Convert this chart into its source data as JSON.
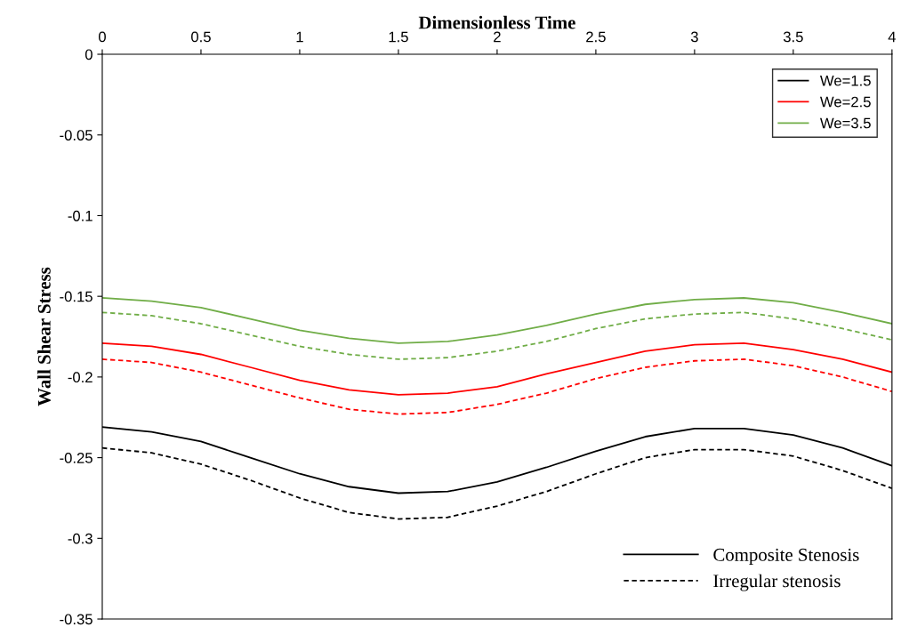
{
  "chart_data": {
    "type": "line",
    "xlabel": "Dimensionless Time",
    "ylabel": "Wall Shear Stress",
    "x": [
      0,
      0.25,
      0.5,
      0.75,
      1,
      1.25,
      1.5,
      1.75,
      2,
      2.25,
      2.5,
      2.75,
      3,
      3.25,
      3.5,
      3.75,
      4
    ],
    "series": [
      {
        "name": "We=1.5",
        "color": "#000000",
        "line_style": "solid",
        "values": [
          -0.231,
          -0.234,
          -0.24,
          -0.25,
          -0.26,
          -0.268,
          -0.272,
          -0.271,
          -0.265,
          -0.256,
          -0.246,
          -0.237,
          -0.232,
          -0.232,
          -0.236,
          -0.244,
          -0.255
        ]
      },
      {
        "name": "We=2.5",
        "color": "#ff0000",
        "line_style": "solid",
        "values": [
          -0.179,
          -0.181,
          -0.186,
          -0.194,
          -0.202,
          -0.208,
          -0.211,
          -0.21,
          -0.206,
          -0.198,
          -0.191,
          -0.184,
          -0.18,
          -0.179,
          -0.183,
          -0.189,
          -0.197
        ]
      },
      {
        "name": "We=3.5",
        "color": "#70ad47",
        "line_style": "solid",
        "values": [
          -0.151,
          -0.153,
          -0.157,
          -0.164,
          -0.171,
          -0.176,
          -0.179,
          -0.178,
          -0.174,
          -0.168,
          -0.161,
          -0.155,
          -0.152,
          -0.151,
          -0.154,
          -0.16,
          -0.167
        ]
      },
      {
        "color": "#000000",
        "line_style": "dashed",
        "values": [
          -0.244,
          -0.247,
          -0.254,
          -0.264,
          -0.275,
          -0.284,
          -0.288,
          -0.287,
          -0.28,
          -0.271,
          -0.26,
          -0.25,
          -0.245,
          -0.245,
          -0.249,
          -0.258,
          -0.269
        ]
      },
      {
        "color": "#ff0000",
        "line_style": "dashed",
        "values": [
          -0.189,
          -0.191,
          -0.197,
          -0.205,
          -0.213,
          -0.22,
          -0.223,
          -0.222,
          -0.217,
          -0.21,
          -0.201,
          -0.194,
          -0.19,
          -0.189,
          -0.193,
          -0.2,
          -0.209
        ]
      },
      {
        "color": "#70ad47",
        "line_style": "dashed",
        "values": [
          -0.16,
          -0.162,
          -0.167,
          -0.174,
          -0.181,
          -0.186,
          -0.189,
          -0.188,
          -0.184,
          -0.178,
          -0.17,
          -0.164,
          -0.161,
          -0.16,
          -0.164,
          -0.17,
          -0.177
        ]
      }
    ],
    "annotations": [
      "Composite Stenosis",
      "Irregular stenosis"
    ],
    "xlim": [
      0,
      4
    ],
    "xticks": [
      0,
      0.5,
      1,
      1.5,
      2,
      2.5,
      3,
      3.5,
      4
    ],
    "ylim": [
      -0.35,
      0
    ],
    "yticks": [
      0,
      -0.05,
      -0.1,
      -0.15,
      -0.2,
      -0.25,
      -0.3,
      -0.35
    ],
    "grid": false,
    "legend": "top right",
    "marker": "none"
  }
}
